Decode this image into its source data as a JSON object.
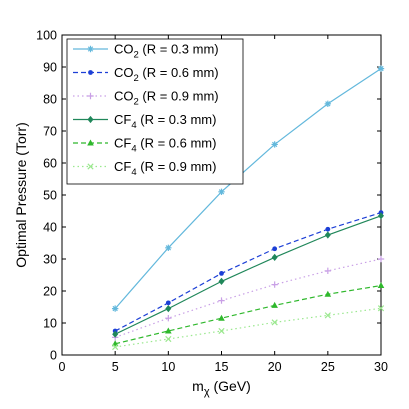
{
  "chart_data": {
    "type": "line",
    "xlabel_main": "m",
    "xlabel_sub": "χ",
    "xlabel_rest": " (GeV)",
    "ylabel": "Optimal Pressure (Torr)",
    "xlim": [
      0,
      30
    ],
    "ylim": [
      0,
      100
    ],
    "x_ticks": [
      "0",
      "5",
      "10",
      "15",
      "20",
      "25",
      "30"
    ],
    "y_ticks": [
      "0",
      "10",
      "20",
      "30",
      "40",
      "50",
      "60",
      "70",
      "80",
      "90",
      "100"
    ],
    "grid": false,
    "legend_position": "top-left",
    "x": [
      5,
      10,
      15,
      20,
      25,
      30
    ],
    "series": [
      {
        "legend_main": "CO",
        "legend_sub": "2",
        "legend_rest": " (R = 0.3 mm)",
        "values": [
          14.5,
          33.5,
          51,
          65.8,
          78.5,
          89.5
        ],
        "color": "#63b8dc",
        "dash": "",
        "marker": "star"
      },
      {
        "legend_main": "CO",
        "legend_sub": "2",
        "legend_rest": " (R = 0.6 mm)",
        "values": [
          7.5,
          16.3,
          25.5,
          33.2,
          39.3,
          44.5
        ],
        "color": "#1c3fd6",
        "dash": "5,3",
        "marker": "dot"
      },
      {
        "legend_main": "CO",
        "legend_sub": "2",
        "legend_rest": " (R = 0.9 mm)",
        "values": [
          5.5,
          11.5,
          17,
          22,
          26.3,
          30
        ],
        "color": "#c9a0e6",
        "dash": "1.5,3",
        "marker": "plus"
      },
      {
        "legend_main": "CF",
        "legend_sub": "4",
        "legend_rest": " (R = 0.3 mm)",
        "values": [
          6.5,
          14.5,
          23,
          30.5,
          37.5,
          43.5
        ],
        "color": "#20875a",
        "dash": "",
        "marker": "diamond"
      },
      {
        "legend_main": "CF",
        "legend_sub": "4",
        "legend_rest": " (R = 0.6 mm)",
        "values": [
          3.5,
          7.5,
          11.5,
          15.5,
          19,
          21.7
        ],
        "color": "#2fb82c",
        "dash": "5,3",
        "marker": "triangle"
      },
      {
        "legend_main": "CF",
        "legend_sub": "4",
        "legend_rest": " (R = 0.9 mm)",
        "values": [
          2.5,
          5,
          7.5,
          10.2,
          12.4,
          14.6
        ],
        "color": "#9be88f",
        "dash": "1.5,3",
        "marker": "x"
      }
    ]
  }
}
